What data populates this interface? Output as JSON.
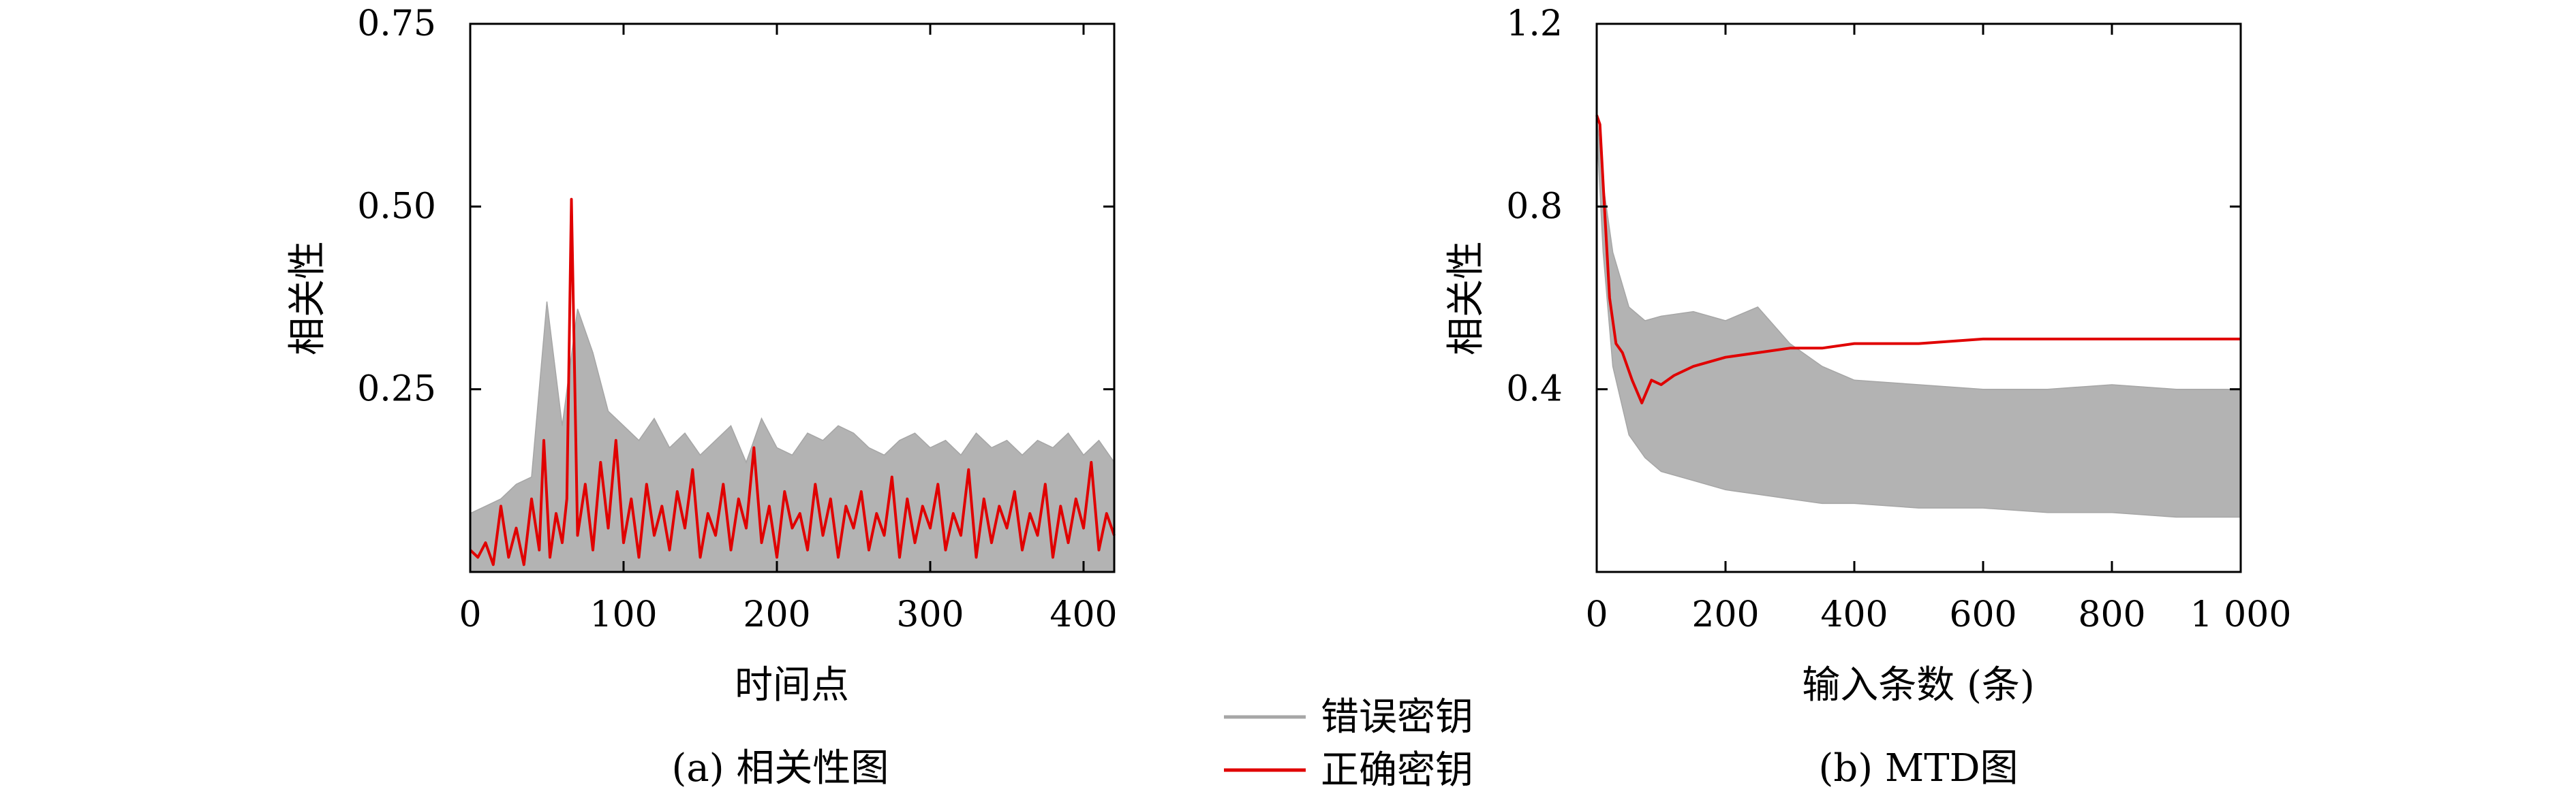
{
  "chart_data": [
    {
      "type": "line",
      "caption": "(a) 相关性图",
      "xlabel": "时间点",
      "ylabel": "相关性",
      "xlim": [
        0,
        420
      ],
      "ylim": [
        0,
        0.75
      ],
      "xticks": [
        0,
        100,
        200,
        300,
        400
      ],
      "xtick_labels": [
        "0",
        "100",
        "200",
        "300",
        "400"
      ],
      "yticks": [
        0.25,
        0.5,
        0.75
      ],
      "ytick_labels": [
        "0.25",
        "0.50",
        "0.75"
      ],
      "series": [
        {
          "name": "错误密钥",
          "color": "#a6a6a6",
          "kind": "band",
          "x": [
            0,
            10,
            20,
            30,
            40,
            50,
            60,
            70,
            80,
            90,
            100,
            110,
            120,
            130,
            140,
            150,
            160,
            170,
            180,
            190,
            200,
            210,
            220,
            230,
            240,
            250,
            260,
            270,
            280,
            290,
            300,
            310,
            320,
            330,
            340,
            350,
            360,
            370,
            380,
            390,
            400,
            410,
            420
          ],
          "upper": [
            0.08,
            0.09,
            0.1,
            0.12,
            0.13,
            0.37,
            0.2,
            0.36,
            0.3,
            0.22,
            0.2,
            0.18,
            0.21,
            0.17,
            0.19,
            0.16,
            0.18,
            0.2,
            0.15,
            0.21,
            0.17,
            0.16,
            0.19,
            0.18,
            0.2,
            0.19,
            0.17,
            0.16,
            0.18,
            0.19,
            0.17,
            0.18,
            0.16,
            0.19,
            0.17,
            0.18,
            0.16,
            0.18,
            0.17,
            0.19,
            0.16,
            0.18,
            0.15
          ],
          "lower": [
            0.0,
            0.0,
            0.0,
            0.0,
            0.0,
            0.0,
            0.0,
            0.0,
            0.0,
            0.0,
            0.0,
            0.0,
            0.0,
            0.0,
            0.0,
            0.0,
            0.0,
            0.0,
            0.0,
            0.0,
            0.0,
            0.0,
            0.0,
            0.0,
            0.0,
            0.0,
            0.0,
            0.0,
            0.0,
            0.0,
            0.0,
            0.0,
            0.0,
            0.0,
            0.0,
            0.0,
            0.0,
            0.0,
            0.0,
            0.0,
            0.0,
            0.0,
            0.0
          ]
        },
        {
          "name": "正确密钥",
          "color": "#e00000",
          "kind": "line",
          "x": [
            0,
            5,
            10,
            15,
            20,
            25,
            30,
            35,
            40,
            45,
            48,
            52,
            56,
            60,
            63,
            66,
            70,
            75,
            80,
            85,
            90,
            95,
            100,
            105,
            110,
            115,
            120,
            125,
            130,
            135,
            140,
            145,
            150,
            155,
            160,
            165,
            170,
            175,
            180,
            185,
            190,
            195,
            200,
            205,
            210,
            215,
            220,
            225,
            230,
            235,
            240,
            245,
            250,
            255,
            260,
            265,
            270,
            275,
            280,
            285,
            290,
            295,
            300,
            305,
            310,
            315,
            320,
            325,
            330,
            335,
            340,
            345,
            350,
            355,
            360,
            365,
            370,
            375,
            380,
            385,
            390,
            395,
            400,
            405,
            410,
            415,
            420
          ],
          "y": [
            0.03,
            0.02,
            0.04,
            0.01,
            0.09,
            0.02,
            0.06,
            0.01,
            0.1,
            0.03,
            0.18,
            0.02,
            0.08,
            0.04,
            0.1,
            0.51,
            0.05,
            0.12,
            0.03,
            0.15,
            0.06,
            0.18,
            0.04,
            0.1,
            0.02,
            0.12,
            0.05,
            0.09,
            0.03,
            0.11,
            0.06,
            0.14,
            0.02,
            0.08,
            0.05,
            0.12,
            0.03,
            0.1,
            0.06,
            0.17,
            0.04,
            0.09,
            0.02,
            0.11,
            0.06,
            0.08,
            0.03,
            0.12,
            0.05,
            0.1,
            0.02,
            0.09,
            0.06,
            0.11,
            0.03,
            0.08,
            0.05,
            0.13,
            0.02,
            0.1,
            0.04,
            0.09,
            0.06,
            0.12,
            0.03,
            0.08,
            0.05,
            0.14,
            0.02,
            0.1,
            0.04,
            0.09,
            0.06,
            0.11,
            0.03,
            0.08,
            0.05,
            0.12,
            0.02,
            0.09,
            0.04,
            0.1,
            0.06,
            0.15,
            0.03,
            0.08,
            0.05
          ]
        }
      ]
    },
    {
      "type": "line",
      "caption": "(b) MTD图",
      "xlabel": "输入条数 (条)",
      "ylabel": "相关性",
      "xlim": [
        0,
        1000
      ],
      "ylim": [
        0,
        1.2
      ],
      "xticks": [
        0,
        200,
        400,
        600,
        800,
        1000
      ],
      "xtick_labels": [
        "0",
        "200",
        "400",
        "600",
        "800",
        "1 000"
      ],
      "yticks": [
        0.4,
        0.8,
        1.2
      ],
      "ytick_labels": [
        "0.4",
        "0.8",
        "1.2"
      ],
      "series": [
        {
          "name": "错误密钥",
          "color": "#a6a6a6",
          "kind": "band",
          "x": [
            0,
            10,
            25,
            50,
            75,
            100,
            150,
            200,
            250,
            300,
            350,
            400,
            500,
            600,
            700,
            800,
            900,
            1000
          ],
          "upper": [
            1.0,
            0.85,
            0.7,
            0.58,
            0.55,
            0.56,
            0.57,
            0.55,
            0.58,
            0.5,
            0.45,
            0.42,
            0.41,
            0.4,
            0.4,
            0.41,
            0.4,
            0.4
          ],
          "lower": [
            0.97,
            0.7,
            0.45,
            0.3,
            0.25,
            0.22,
            0.2,
            0.18,
            0.17,
            0.16,
            0.15,
            0.15,
            0.14,
            0.14,
            0.13,
            0.13,
            0.12,
            0.12
          ]
        },
        {
          "name": "正确密钥",
          "color": "#e00000",
          "kind": "line",
          "x": [
            0,
            5,
            12,
            20,
            30,
            40,
            55,
            70,
            85,
            100,
            120,
            150,
            200,
            250,
            300,
            350,
            400,
            500,
            600,
            700,
            800,
            900,
            1000
          ],
          "y": [
            1.0,
            0.98,
            0.8,
            0.6,
            0.5,
            0.48,
            0.42,
            0.37,
            0.42,
            0.41,
            0.43,
            0.45,
            0.47,
            0.48,
            0.49,
            0.49,
            0.5,
            0.5,
            0.51,
            0.51,
            0.51,
            0.51,
            0.51
          ]
        }
      ]
    }
  ],
  "legend": {
    "placement": "bottom-center",
    "items": [
      {
        "label": "错误密钥",
        "color": "#a6a6a6"
      },
      {
        "label": "正确密钥",
        "color": "#e00000"
      }
    ]
  }
}
